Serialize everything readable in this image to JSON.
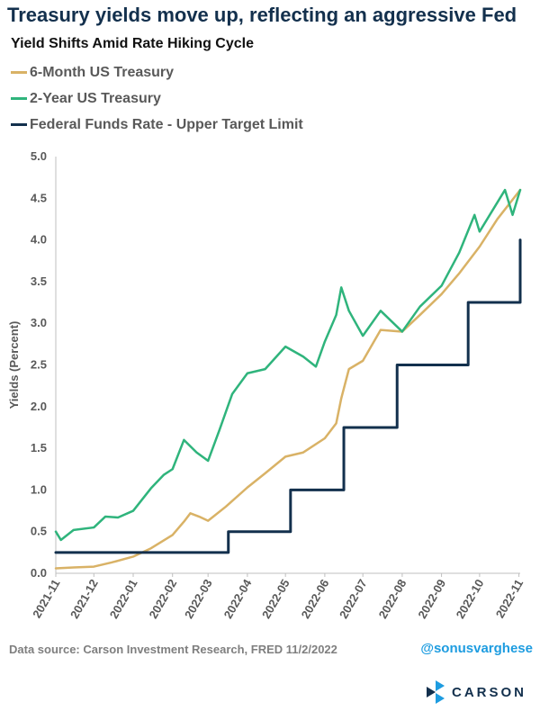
{
  "header": {
    "title": "Treasury yields move up, reflecting an aggressive Fed",
    "subtitle": "Yield Shifts Amid Rate Hiking Cycle"
  },
  "footer": {
    "source": "Data source: Carson Investment Research, FRED    11/2/2022",
    "handle": "@sonusvarghese",
    "brand": "CARSON"
  },
  "chart_data": {
    "type": "line",
    "ylabel": "Yields (Percent)",
    "ylim": [
      0,
      5
    ],
    "y_ticks": [
      "0.0",
      "0.5",
      "1.0",
      "1.5",
      "2.0",
      "2.5",
      "3.0",
      "3.5",
      "4.0",
      "4.5",
      "5.0"
    ],
    "x_tick_labels": [
      "2021-11",
      "2021-12",
      "2022-01",
      "2022-02",
      "2022-03",
      "2022-04",
      "2022-05",
      "2022-06",
      "2022-07",
      "2022-08",
      "2022-09",
      "2022-10",
      "2022-11"
    ],
    "xlim": [
      "2021-11-01",
      "2022-11-02"
    ],
    "grid": false,
    "legend_position": "top-left",
    "series": [
      {
        "name": "6-Month US Treasury",
        "color": "#d9b266",
        "points": [
          [
            "2021-11-01",
            0.06
          ],
          [
            "2021-11-15",
            0.07
          ],
          [
            "2021-12-01",
            0.08
          ],
          [
            "2021-12-15",
            0.13
          ],
          [
            "2022-01-01",
            0.2
          ],
          [
            "2022-01-15",
            0.3
          ],
          [
            "2022-02-01",
            0.46
          ],
          [
            "2022-02-10",
            0.62
          ],
          [
            "2022-02-15",
            0.72
          ],
          [
            "2022-02-22",
            0.68
          ],
          [
            "2022-03-01",
            0.63
          ],
          [
            "2022-03-15",
            0.8
          ],
          [
            "2022-04-01",
            1.03
          ],
          [
            "2022-04-15",
            1.2
          ],
          [
            "2022-05-01",
            1.4
          ],
          [
            "2022-05-15",
            1.45
          ],
          [
            "2022-06-01",
            1.62
          ],
          [
            "2022-06-10",
            1.8
          ],
          [
            "2022-06-14",
            2.1
          ],
          [
            "2022-06-20",
            2.45
          ],
          [
            "2022-07-01",
            2.55
          ],
          [
            "2022-07-15",
            2.92
          ],
          [
            "2022-08-01",
            2.9
          ],
          [
            "2022-08-15",
            3.1
          ],
          [
            "2022-09-01",
            3.35
          ],
          [
            "2022-09-15",
            3.6
          ],
          [
            "2022-10-01",
            3.92
          ],
          [
            "2022-10-15",
            4.25
          ],
          [
            "2022-11-02",
            4.6
          ]
        ]
      },
      {
        "name": "2-Year US Treasury",
        "color": "#2fb47c",
        "points": [
          [
            "2021-11-01",
            0.5
          ],
          [
            "2021-11-05",
            0.4
          ],
          [
            "2021-11-15",
            0.52
          ],
          [
            "2021-12-01",
            0.55
          ],
          [
            "2021-12-10",
            0.68
          ],
          [
            "2021-12-20",
            0.67
          ],
          [
            "2022-01-01",
            0.75
          ],
          [
            "2022-01-15",
            1.02
          ],
          [
            "2022-01-25",
            1.18
          ],
          [
            "2022-02-01",
            1.25
          ],
          [
            "2022-02-10",
            1.6
          ],
          [
            "2022-02-20",
            1.45
          ],
          [
            "2022-03-01",
            1.35
          ],
          [
            "2022-03-10",
            1.72
          ],
          [
            "2022-03-20",
            2.15
          ],
          [
            "2022-04-01",
            2.4
          ],
          [
            "2022-04-15",
            2.45
          ],
          [
            "2022-05-01",
            2.72
          ],
          [
            "2022-05-15",
            2.6
          ],
          [
            "2022-05-25",
            2.48
          ],
          [
            "2022-06-01",
            2.78
          ],
          [
            "2022-06-10",
            3.1
          ],
          [
            "2022-06-14",
            3.43
          ],
          [
            "2022-06-20",
            3.15
          ],
          [
            "2022-07-01",
            2.85
          ],
          [
            "2022-07-15",
            3.15
          ],
          [
            "2022-08-01",
            2.9
          ],
          [
            "2022-08-15",
            3.2
          ],
          [
            "2022-09-01",
            3.45
          ],
          [
            "2022-09-15",
            3.85
          ],
          [
            "2022-09-27",
            4.3
          ],
          [
            "2022-10-01",
            4.1
          ],
          [
            "2022-10-15",
            4.45
          ],
          [
            "2022-10-21",
            4.6
          ],
          [
            "2022-10-27",
            4.3
          ],
          [
            "2022-11-02",
            4.6
          ]
        ]
      },
      {
        "name": "Federal Funds Rate - Upper Target Limit",
        "color": "#13304d",
        "step": true,
        "points": [
          [
            "2021-11-01",
            0.25
          ],
          [
            "2022-03-17",
            0.5
          ],
          [
            "2022-05-05",
            1.0
          ],
          [
            "2022-06-16",
            1.75
          ],
          [
            "2022-07-28",
            2.5
          ],
          [
            "2022-09-22",
            3.25
          ],
          [
            "2022-11-02",
            4.0
          ]
        ]
      }
    ]
  }
}
